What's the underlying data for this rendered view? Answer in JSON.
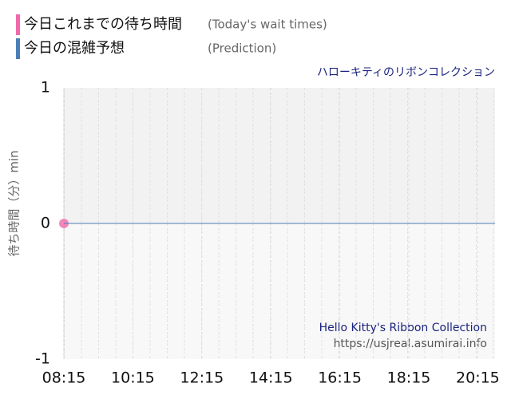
{
  "chart_data": {
    "type": "line",
    "annotations": [
      "ハローキティのリボンコレクション",
      "Hello Kitty's Ribbon Collection",
      "https://usjreal.asumirai.info"
    ],
    "y_label": "待ち時間（分）min",
    "series": [
      {
        "name": "今日これまでの待ち時間",
        "subtitle": "(Today's wait times)",
        "color": "#f06aa9",
        "x": [
          "08:15"
        ],
        "values": [
          0
        ]
      },
      {
        "name": "今日の混雑予想",
        "subtitle": "(Prediction)",
        "color": "#4a7fb5",
        "x": [
          "08:15",
          "20:45"
        ],
        "values": [
          0,
          0
        ]
      }
    ],
    "xlim": [
      "08:15",
      "20:45"
    ],
    "xticks": [
      "08:15",
      "10:15",
      "12:15",
      "14:15",
      "16:15",
      "18:15",
      "20:15"
    ],
    "ylim": [
      -1,
      1
    ],
    "yticks": [
      -1,
      0,
      1
    ],
    "grid": true
  }
}
